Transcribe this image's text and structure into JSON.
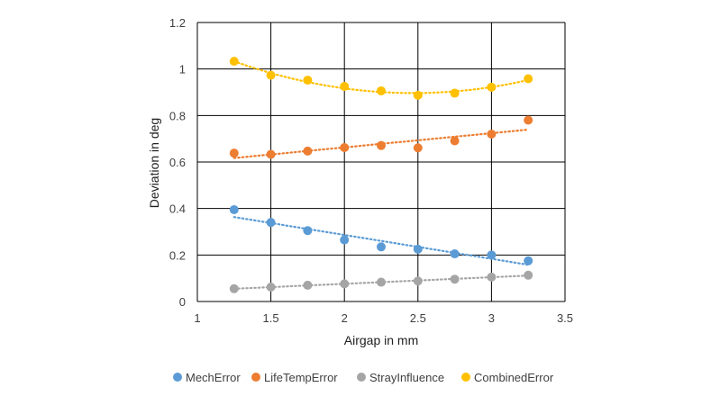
{
  "chart_data": {
    "type": "scatter",
    "title": "",
    "xlabel": "Airgap in mm",
    "ylabel": "Deviation in deg",
    "xlim": [
      1,
      3.5
    ],
    "ylim": [
      0,
      1.2
    ],
    "x_ticks": [
      "1",
      "1.5",
      "2",
      "2.5",
      "3",
      "3.5"
    ],
    "y_ticks": [
      "0",
      "0.2",
      "0.4",
      "0.6",
      "0.8",
      "1",
      "1.2"
    ],
    "grid": true,
    "legend_position": "bottom",
    "x": [
      1.25,
      1.5,
      1.75,
      2.0,
      2.25,
      2.5,
      2.75,
      3.0,
      3.25
    ],
    "series": [
      {
        "name": "MechError",
        "color": "#5b9bd5",
        "values": [
          0.395,
          0.34,
          0.305,
          0.265,
          0.235,
          0.225,
          0.205,
          0.2,
          0.175
        ],
        "trendline": "linear"
      },
      {
        "name": "LifeTempError",
        "color": "#ed7d31",
        "values": [
          0.638,
          0.633,
          0.647,
          0.662,
          0.671,
          0.661,
          0.691,
          0.72,
          0.78
        ],
        "trendline": "linear"
      },
      {
        "name": "StrayInfluence",
        "color": "#a5a5a5",
        "values": [
          0.055,
          0.062,
          0.07,
          0.076,
          0.083,
          0.088,
          0.096,
          0.105,
          0.113
        ],
        "trendline": "linear"
      },
      {
        "name": "CombinedError",
        "color": "#ffc000",
        "values": [
          1.033,
          0.973,
          0.952,
          0.925,
          0.906,
          0.887,
          0.896,
          0.922,
          0.958
        ],
        "trendline": "polynomial"
      }
    ]
  }
}
